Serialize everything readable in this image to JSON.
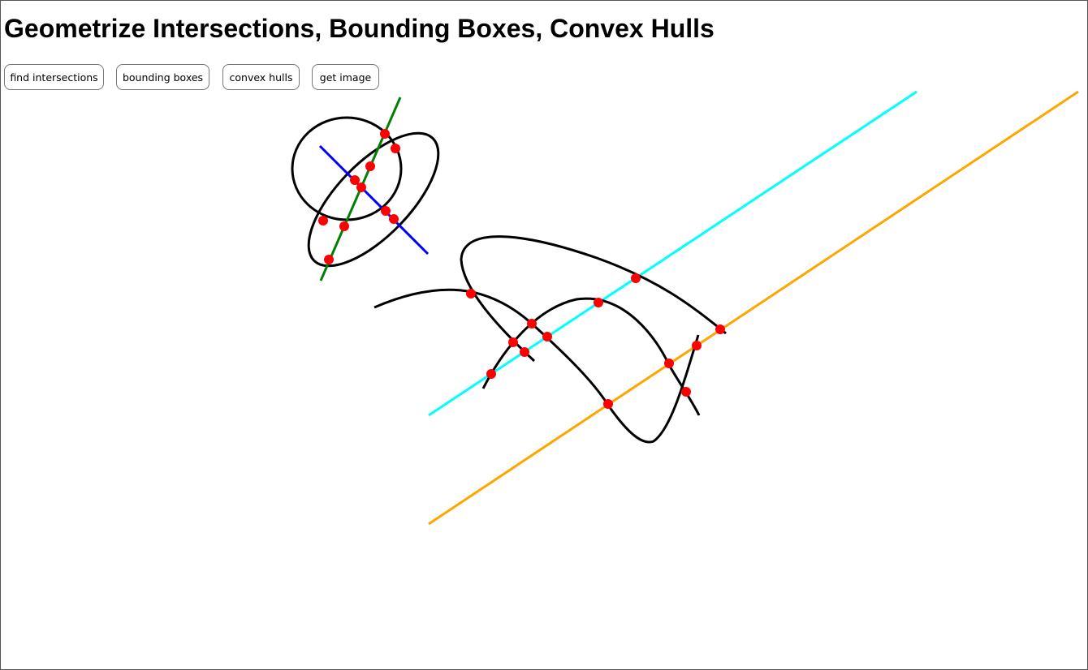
{
  "page": {
    "title": "Geometrize Intersections, Bounding Boxes, Convex Hulls"
  },
  "toolbar": {
    "find_intersections_label": "find intersections",
    "bounding_boxes_label": "bounding boxes",
    "convex_hulls_label": "convex hulls",
    "get_image_label": "get image"
  },
  "colors": {
    "curve": "#000000",
    "green_line": "#008000",
    "blue_line": "#0000ff",
    "cyan_line": "#00ffff",
    "orange_line": "#ffa500",
    "intersection_point": "#ff0000",
    "frame_border": "#555555"
  }
}
